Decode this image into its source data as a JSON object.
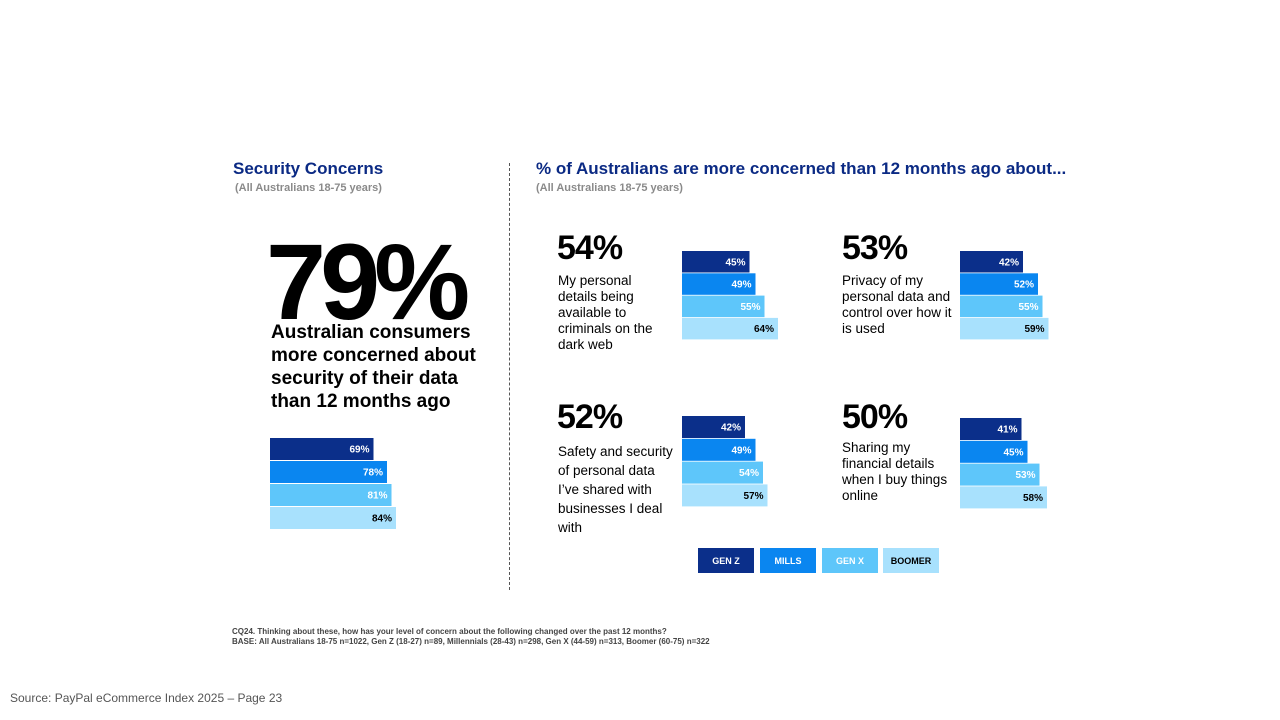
{
  "left": {
    "title": "Security Concerns",
    "subtitle": "(All Australians 18-75 years)",
    "headline": "79%",
    "headline_desc": "Australian consumers more concerned about security of their data than 12 months ago"
  },
  "right": {
    "title": "% of Australians are more concerned than 12 months ago about...",
    "subtitle": "(All Australians 18-75 years)"
  },
  "colors": {
    "gen_z": "#0b2f8a",
    "mills": "#0a86f0",
    "gen_x": "#5ec6fa",
    "boomer": "#a8e1fd"
  },
  "chart_data": [
    {
      "type": "bar",
      "categories": [
        "GEN Z",
        "MILLS",
        "GEN X",
        "BOOMER"
      ],
      "values": [
        69,
        78,
        81,
        84
      ]
    },
    {
      "type": "bar",
      "headline": "54%",
      "title": "My personal details being available to criminals on the dark web",
      "categories": [
        "GEN Z",
        "MILLS",
        "GEN X",
        "BOOMER"
      ],
      "values": [
        45,
        49,
        55,
        64
      ]
    },
    {
      "type": "bar",
      "headline": "53%",
      "title": "Privacy of my personal data and control over how it is used",
      "categories": [
        "GEN Z",
        "MILLS",
        "GEN X",
        "BOOMER"
      ],
      "values": [
        42,
        52,
        55,
        59
      ]
    },
    {
      "type": "bar",
      "headline": "52%",
      "title": "Safety and security of personal data I’ve shared with businesses I deal with",
      "categories": [
        "GEN Z",
        "MILLS",
        "GEN X",
        "BOOMER"
      ],
      "values": [
        42,
        49,
        54,
        57
      ]
    },
    {
      "type": "bar",
      "headline": "50%",
      "title": "Sharing my financial details when I buy things online",
      "categories": [
        "GEN Z",
        "MILLS",
        "GEN X",
        "BOOMER"
      ],
      "values": [
        41,
        45,
        53,
        58
      ]
    }
  ],
  "legend": [
    "GEN Z",
    "MILLS",
    "GEN X",
    "BOOMER"
  ],
  "footnote": {
    "question": "CQ24. Thinking about these, how has your level of concern about the following changed over the past 12 months?",
    "base": "BASE: All Australians 18-75 n=1022, Gen Z (18-27) n=89, Millennials (28-43) n=298, Gen X (44-59) n=313, Boomer (60-75) n=322"
  },
  "source": "Source: PayPal eCommerce Index 2025 – Page 23"
}
